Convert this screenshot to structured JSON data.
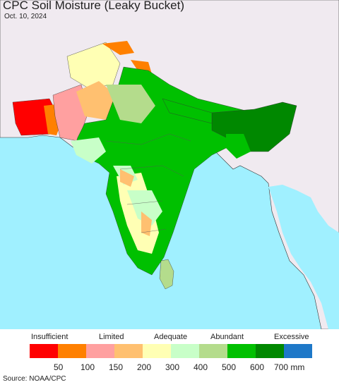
{
  "title": "CPC Soil Moisture (Leaky Bucket)",
  "date": "Oct. 10, 2024",
  "legend": {
    "categories": [
      "Insufficient",
      "Limited",
      "Adequate",
      "Abundant",
      "Excessive"
    ],
    "colors": [
      "#ff0000",
      "#ff8000",
      "#ffa0a0",
      "#ffc070",
      "#ffffb4",
      "#c8ffc8",
      "#b4dc8c",
      "#00c000",
      "#008800",
      "#1e78c8"
    ],
    "ticks": [
      "50",
      "100",
      "150",
      "200",
      "300",
      "400",
      "500",
      "600",
      "700 mm"
    ]
  },
  "source": "Source: NOAA/CPC",
  "map_colors": {
    "ocean": "#a0f0ff",
    "outside_land": "#f0eaf0",
    "border": "#333333"
  }
}
